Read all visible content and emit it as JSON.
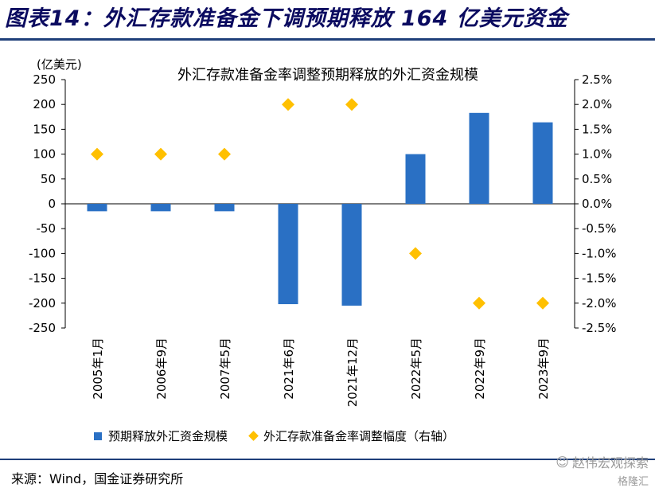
{
  "header": {
    "title": "图表14：外汇存款准备金下调预期释放 164 亿美元资金"
  },
  "chart_data": {
    "type": "bar",
    "title": "外汇存款准备金率调整预期释放的外汇资金规模",
    "left_unit": "(亿美元)",
    "categories": [
      "2005年1月",
      "2006年9月",
      "2007年5月",
      "2021年6月",
      "2021年12月",
      "2022年5月",
      "2022年9月",
      "2023年9月"
    ],
    "series": [
      {
        "name": "预期释放外汇资金规模",
        "type": "bar",
        "axis": "left",
        "color": "#2a70c4",
        "values": [
          -15,
          -15,
          -15,
          -202,
          -205,
          100,
          183,
          164
        ]
      },
      {
        "name": "外汇存款准备金率调整幅度（右轴）",
        "type": "scatter",
        "axis": "right",
        "color": "#ffc000",
        "values": [
          1.0,
          1.0,
          1.0,
          2.0,
          2.0,
          -1.0,
          -2.0,
          -2.0
        ]
      }
    ],
    "ylim": [
      -250,
      250
    ],
    "yticks": [
      "250",
      "200",
      "150",
      "100",
      "50",
      "0",
      "-50",
      "-100",
      "-150",
      "-200",
      "-250"
    ],
    "y2lim": [
      -2.5,
      2.5
    ],
    "y2ticks": [
      "2.5%",
      "2.0%",
      "1.5%",
      "1.0%",
      "0.5%",
      "0.0%",
      "-0.5%",
      "-1.0%",
      "-1.5%",
      "-2.0%",
      "-2.5%"
    ],
    "grid": false,
    "legend": "bottom"
  },
  "footer": {
    "source": "来源：Wind，国金证券研究所",
    "watermark": "赵伟宏观探索",
    "badge": "格隆汇"
  }
}
